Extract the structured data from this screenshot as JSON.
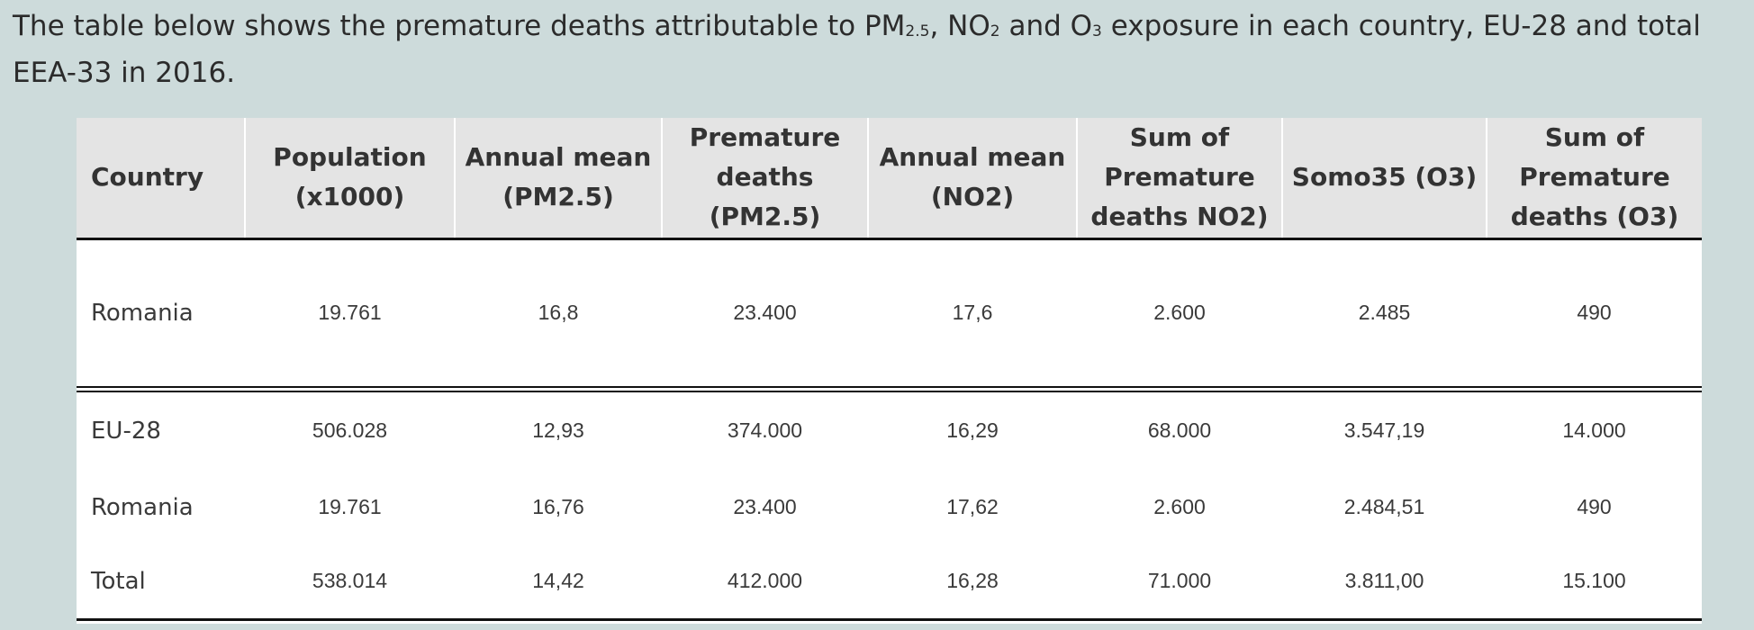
{
  "intro": {
    "part1": "The table below shows the premature deaths attributable to PM",
    "pm_sub": "2.5",
    "part2": ", NO",
    "no_sub": "2",
    "part3": " and O",
    "o_sub": "3",
    "part4": " exposure in each country, EU-28 and total EEA-33 in 2016."
  },
  "table": {
    "headers": [
      "Country",
      "Population (x1000)",
      "Annual mean (PM2.5)",
      "Premature deaths (PM2.5)",
      "Annual mean (NO2)",
      "Sum of Premature deaths NO2)",
      "Somo35 (O3)",
      "Sum of Premature deaths (O3)"
    ],
    "top_rows": [
      [
        "Romania",
        "19.761",
        "16,8",
        "23.400",
        "17,6",
        "2.600",
        "2.485",
        "490"
      ]
    ],
    "bottom_rows": [
      [
        "EU-28",
        "506.028",
        "12,93",
        "374.000",
        "16,29",
        "68.000",
        "3.547,19",
        "14.000"
      ],
      [
        "Romania",
        "19.761",
        "16,76",
        "23.400",
        "17,62",
        "2.600",
        "2.484,51",
        "490"
      ],
      [
        "Total",
        "538.014",
        "14,42",
        "412.000",
        "16,28",
        "71.000",
        "3.811,00",
        "15.100"
      ]
    ]
  }
}
